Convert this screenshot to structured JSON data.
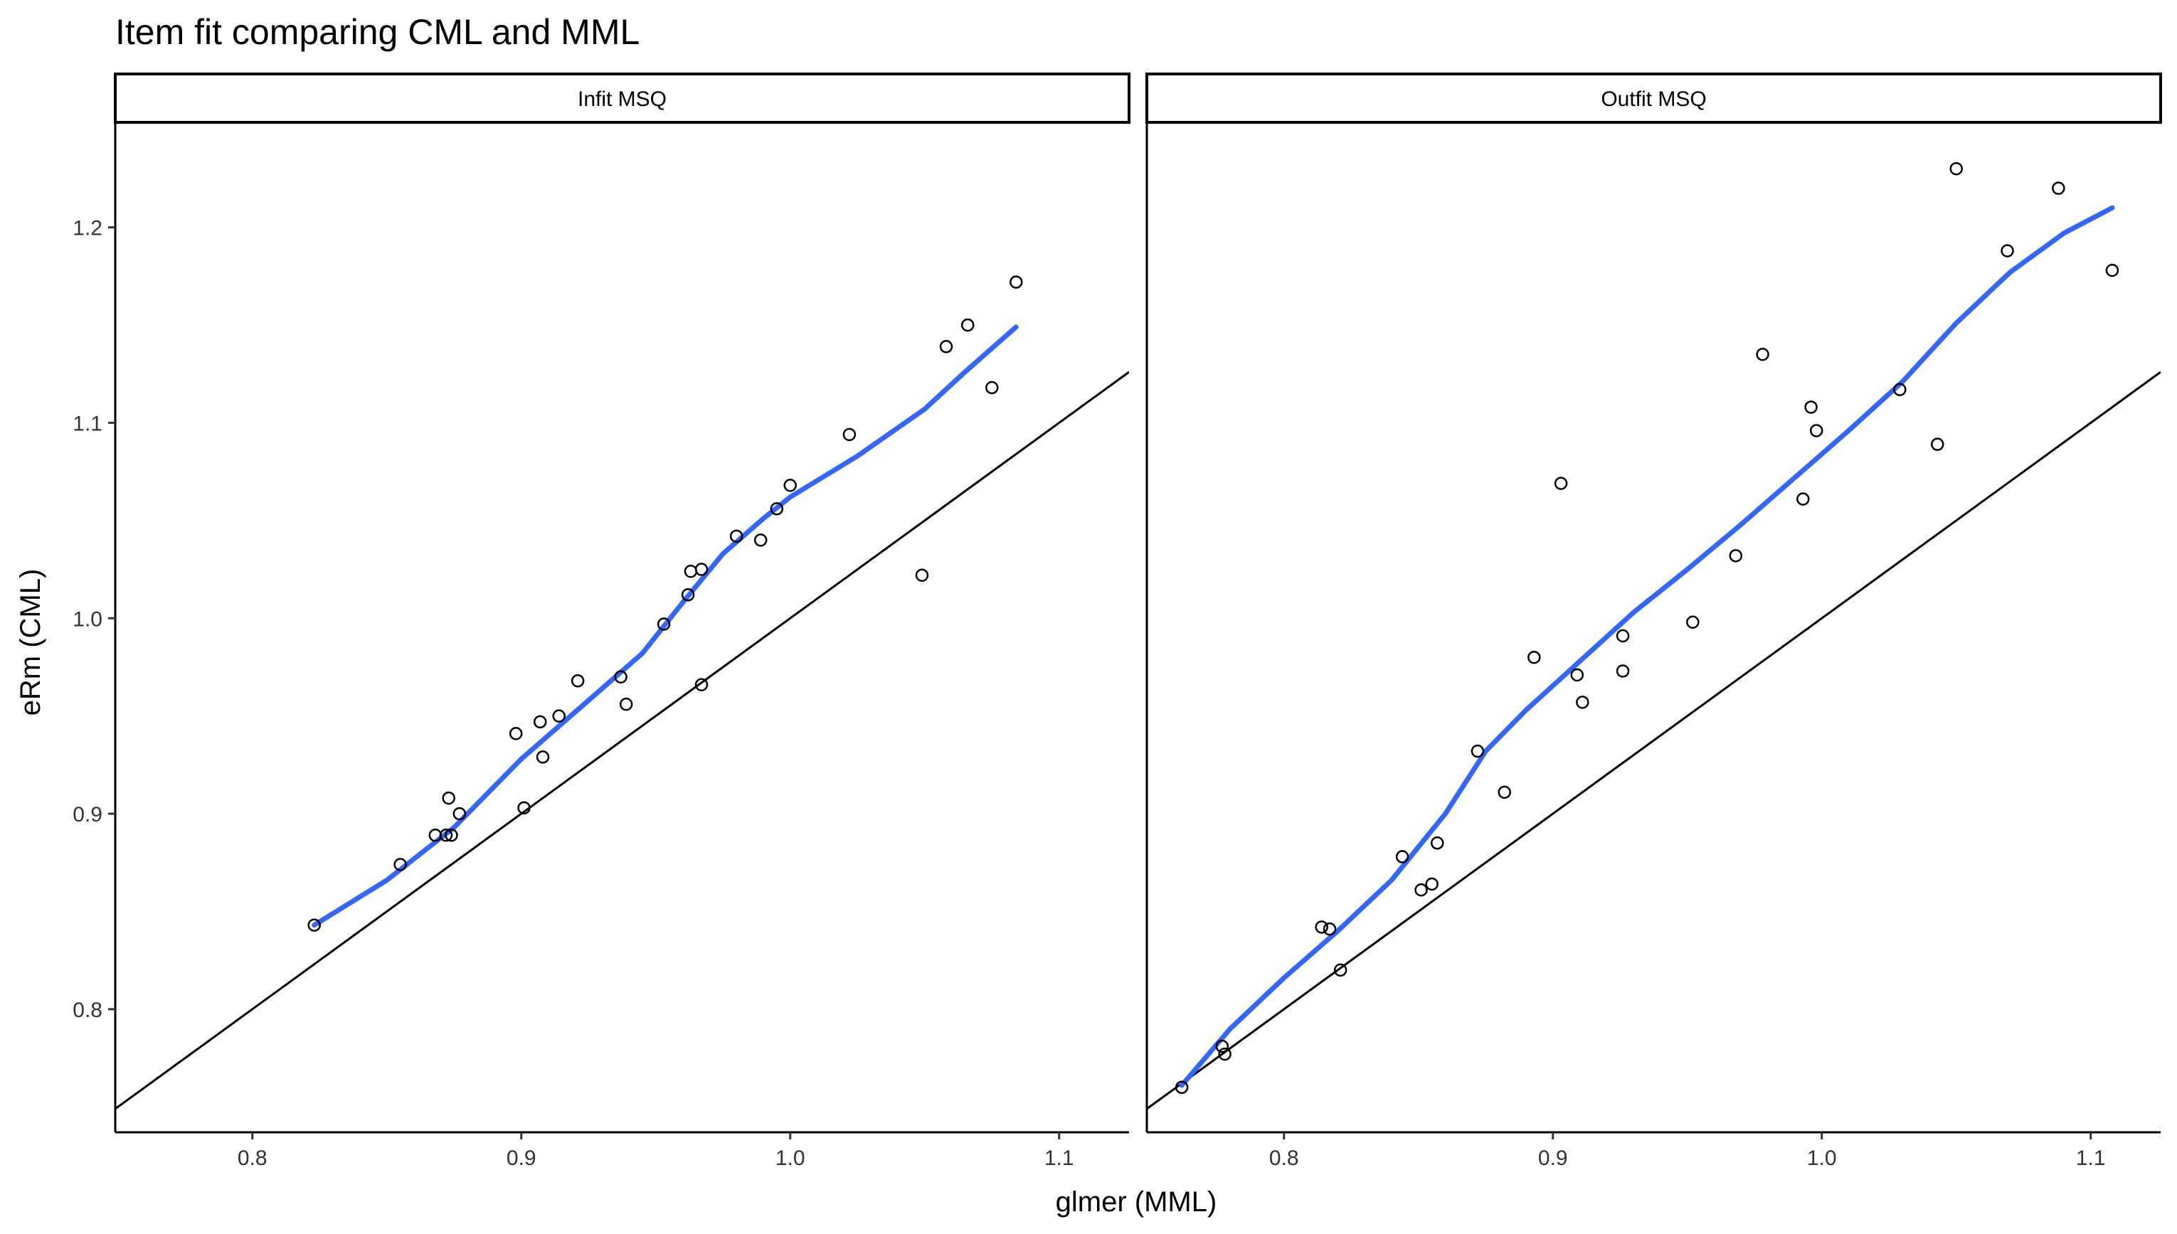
{
  "chart_data": {
    "type": "scatter",
    "title": "Item fit comparing CML and MML",
    "xlabel": "glmer (MML)",
    "ylabel": "eRm (CML)",
    "xlim": [
      0.749,
      1.126
    ],
    "ylim": [
      0.737,
      1.253
    ],
    "x_ticks": [
      0.8,
      0.9,
      1.0,
      1.1
    ],
    "x_tick_labels": [
      "0.8",
      "0.9",
      "1.0",
      "1.1"
    ],
    "y_ticks": [
      0.8,
      0.9,
      1.0,
      1.1,
      1.2
    ],
    "y_tick_labels": [
      "0.8",
      "0.9",
      "1.0",
      "1.1",
      "1.2"
    ],
    "grid": false,
    "reference_line": "y = x",
    "colors": {
      "points": "#000000",
      "smooth": "#3366FF",
      "reference": "#000000",
      "strip_border": "#000000"
    },
    "panels": [
      {
        "label": "Infit MSQ",
        "points": [
          {
            "x": 0.823,
            "y": 0.843
          },
          {
            "x": 0.855,
            "y": 0.874
          },
          {
            "x": 0.868,
            "y": 0.889
          },
          {
            "x": 0.872,
            "y": 0.889
          },
          {
            "x": 0.874,
            "y": 0.889
          },
          {
            "x": 0.873,
            "y": 0.908
          },
          {
            "x": 0.877,
            "y": 0.9
          },
          {
            "x": 0.898,
            "y": 0.941
          },
          {
            "x": 0.901,
            "y": 0.903
          },
          {
            "x": 0.907,
            "y": 0.947
          },
          {
            "x": 0.908,
            "y": 0.929
          },
          {
            "x": 0.914,
            "y": 0.95
          },
          {
            "x": 0.921,
            "y": 0.968
          },
          {
            "x": 0.937,
            "y": 0.97
          },
          {
            "x": 0.939,
            "y": 0.956
          },
          {
            "x": 0.953,
            "y": 0.997
          },
          {
            "x": 0.962,
            "y": 1.012
          },
          {
            "x": 0.963,
            "y": 1.024
          },
          {
            "x": 0.967,
            "y": 1.025
          },
          {
            "x": 0.967,
            "y": 0.966
          },
          {
            "x": 0.98,
            "y": 1.042
          },
          {
            "x": 0.989,
            "y": 1.04
          },
          {
            "x": 0.995,
            "y": 1.056
          },
          {
            "x": 1.0,
            "y": 1.068
          },
          {
            "x": 1.022,
            "y": 1.094
          },
          {
            "x": 1.049,
            "y": 1.022
          },
          {
            "x": 1.058,
            "y": 1.139
          },
          {
            "x": 1.066,
            "y": 1.15
          },
          {
            "x": 1.075,
            "y": 1.118
          },
          {
            "x": 1.084,
            "y": 1.172
          }
        ],
        "smooth": [
          {
            "x": 0.823,
            "y": 0.843
          },
          {
            "x": 0.85,
            "y": 0.866
          },
          {
            "x": 0.875,
            "y": 0.893
          },
          {
            "x": 0.9,
            "y": 0.928
          },
          {
            "x": 0.925,
            "y": 0.958
          },
          {
            "x": 0.945,
            "y": 0.982
          },
          {
            "x": 0.96,
            "y": 1.008
          },
          {
            "x": 0.975,
            "y": 1.033
          },
          {
            "x": 0.99,
            "y": 1.051
          },
          {
            "x": 1.0,
            "y": 1.062
          },
          {
            "x": 1.025,
            "y": 1.083
          },
          {
            "x": 1.05,
            "y": 1.107
          },
          {
            "x": 1.065,
            "y": 1.126
          },
          {
            "x": 1.084,
            "y": 1.149
          }
        ]
      },
      {
        "label": "Outfit MSQ",
        "points": [
          {
            "x": 0.762,
            "y": 0.76
          },
          {
            "x": 0.777,
            "y": 0.781
          },
          {
            "x": 0.778,
            "y": 0.777
          },
          {
            "x": 0.814,
            "y": 0.842
          },
          {
            "x": 0.817,
            "y": 0.841
          },
          {
            "x": 0.821,
            "y": 0.82
          },
          {
            "x": 0.844,
            "y": 0.878
          },
          {
            "x": 0.851,
            "y": 0.861
          },
          {
            "x": 0.855,
            "y": 0.864
          },
          {
            "x": 0.857,
            "y": 0.885
          },
          {
            "x": 0.872,
            "y": 0.932
          },
          {
            "x": 0.882,
            "y": 0.911
          },
          {
            "x": 0.893,
            "y": 0.98
          },
          {
            "x": 0.903,
            "y": 1.069
          },
          {
            "x": 0.909,
            "y": 0.971
          },
          {
            "x": 0.911,
            "y": 0.957
          },
          {
            "x": 0.926,
            "y": 0.991
          },
          {
            "x": 0.926,
            "y": 0.973
          },
          {
            "x": 0.952,
            "y": 0.998
          },
          {
            "x": 0.968,
            "y": 1.032
          },
          {
            "x": 0.978,
            "y": 1.135
          },
          {
            "x": 0.993,
            "y": 1.061
          },
          {
            "x": 0.996,
            "y": 1.108
          },
          {
            "x": 0.998,
            "y": 1.096
          },
          {
            "x": 1.029,
            "y": 1.117
          },
          {
            "x": 1.043,
            "y": 1.089
          },
          {
            "x": 1.05,
            "y": 1.23
          },
          {
            "x": 1.069,
            "y": 1.188
          },
          {
            "x": 1.088,
            "y": 1.22
          },
          {
            "x": 1.108,
            "y": 1.178
          }
        ],
        "smooth": [
          {
            "x": 0.762,
            "y": 0.761
          },
          {
            "x": 0.78,
            "y": 0.79
          },
          {
            "x": 0.8,
            "y": 0.816
          },
          {
            "x": 0.82,
            "y": 0.84
          },
          {
            "x": 0.84,
            "y": 0.866
          },
          {
            "x": 0.86,
            "y": 0.9
          },
          {
            "x": 0.875,
            "y": 0.932
          },
          {
            "x": 0.89,
            "y": 0.953
          },
          {
            "x": 0.91,
            "y": 0.978
          },
          {
            "x": 0.93,
            "y": 1.003
          },
          {
            "x": 0.95,
            "y": 1.025
          },
          {
            "x": 0.97,
            "y": 1.048
          },
          {
            "x": 0.99,
            "y": 1.072
          },
          {
            "x": 1.01,
            "y": 1.096
          },
          {
            "x": 1.03,
            "y": 1.121
          },
          {
            "x": 1.05,
            "y": 1.151
          },
          {
            "x": 1.07,
            "y": 1.177
          },
          {
            "x": 1.09,
            "y": 1.197
          },
          {
            "x": 1.108,
            "y": 1.21
          }
        ]
      }
    ]
  }
}
